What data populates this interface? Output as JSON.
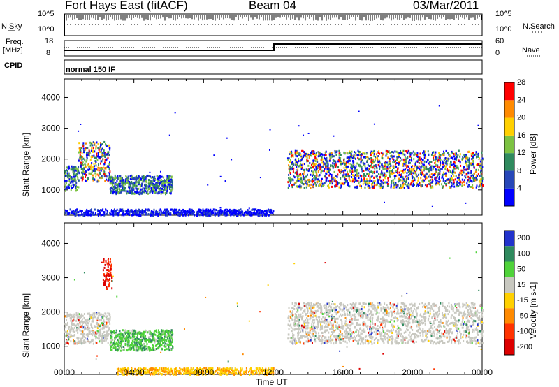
{
  "header": {
    "station": "Fort Hays East (fitACF)",
    "beam": "Beam 04",
    "date": "03/Mar/2011"
  },
  "strip_labels": {
    "nsky": "N.Sky",
    "nsearch": "N.Search",
    "freq": "Freq.",
    "freq_unit": "[MHz]",
    "nave": "Nave",
    "cpid": "CPID",
    "nsky_ticks": [
      "10^5",
      "10^0"
    ],
    "nsearch_ticks": [
      "10^5",
      "10^0"
    ],
    "freq_ticks": [
      "18",
      "8"
    ],
    "nave_ticks": [
      "60",
      "0"
    ],
    "cpid_value": "normal 150 IF"
  },
  "chart_data": [
    {
      "type": "heatmap",
      "name": "power-panel",
      "ylabel": "Slant Range [km]",
      "ylim": [
        180,
        4600
      ],
      "yticks": [
        "1000",
        "2000",
        "3000",
        "4000"
      ],
      "xlim": [
        0,
        24
      ],
      "colorbar": {
        "label": "Power [dB]",
        "ticks": [
          "4",
          "8",
          "12",
          "16",
          "20",
          "24",
          "28"
        ],
        "colors": [
          "#0000ff",
          "#2747b8",
          "#2f8a5e",
          "#7cc242",
          "#ffd000",
          "#ff8a00",
          "#ff0000"
        ]
      },
      "echo_regions": [
        {
          "t_start": 0.0,
          "t_end": 0.8,
          "r_low": 1000,
          "r_high": 1800,
          "level": "mixed"
        },
        {
          "t_start": 0.8,
          "t_end": 2.6,
          "r_low": 1300,
          "r_high": 2600,
          "level": "strong"
        },
        {
          "t_start": 2.6,
          "t_end": 6.2,
          "r_low": 900,
          "r_high": 1500,
          "level": "mixed"
        },
        {
          "t_start": 0.0,
          "t_end": 12.0,
          "r_low": 200,
          "r_high": 400,
          "level": "weak"
        },
        {
          "t_start": 12.8,
          "t_end": 24.0,
          "r_low": 1100,
          "r_high": 2300,
          "level": "strong"
        }
      ]
    },
    {
      "type": "heatmap",
      "name": "velocity-panel",
      "ylabel": "Slant Range [km]",
      "xlabel": "Time UT",
      "ylim": [
        180,
        4600
      ],
      "yticks": [
        "1000",
        "2000",
        "3000",
        "4000"
      ],
      "xlim": [
        0,
        24
      ],
      "xticks": [
        "00:00",
        "04:00",
        "08:00",
        "12:00",
        "16:00",
        "20:00",
        "00:00"
      ],
      "colorbar": {
        "label": "Velocity [m s-1]",
        "ticks": [
          "200",
          "100",
          "50",
          "15",
          "-15",
          "-50",
          "-100",
          "-200"
        ],
        "colors": [
          "#2233cc",
          "#2f8a5e",
          "#4fd23a",
          "#c8c8c0",
          "#ffd000",
          "#ff8a00",
          "#ff3300",
          "#dd0000"
        ]
      },
      "echo_regions": [
        {
          "t_start": 0.0,
          "t_end": 2.6,
          "r_low": 1100,
          "r_high": 2000,
          "level": "ground"
        },
        {
          "t_start": 2.6,
          "t_end": 6.2,
          "r_low": 900,
          "r_high": 1500,
          "level": "positive"
        },
        {
          "t_start": 2.2,
          "t_end": 2.7,
          "r_low": 2700,
          "r_high": 3600,
          "level": "negative"
        },
        {
          "t_start": 3.0,
          "t_end": 12.0,
          "r_low": 200,
          "r_high": 400,
          "level": "negative-weak"
        },
        {
          "t_start": 12.8,
          "t_end": 24.0,
          "r_low": 1100,
          "r_high": 2300,
          "level": "ground"
        }
      ]
    }
  ]
}
